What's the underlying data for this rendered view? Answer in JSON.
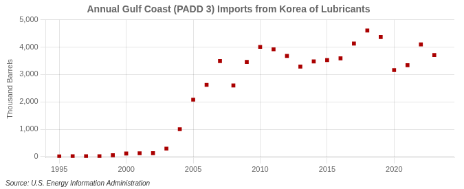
{
  "chart_data": {
    "type": "scatter",
    "title": "Annual Gulf Coast (PADD 3) Imports from Korea of Lubricants",
    "ylabel": "Thousand Barrels",
    "annotations": [
      "Source: U.S. Energy Information Administration"
    ],
    "x": [
      1995,
      1996,
      1997,
      1998,
      1999,
      2000,
      2001,
      2002,
      2003,
      2004,
      2005,
      2006,
      2007,
      2008,
      2009,
      2010,
      2011,
      2012,
      2013,
      2014,
      2015,
      2016,
      2017,
      2018,
      2019,
      2020,
      2021,
      2022,
      2023
    ],
    "values": [
      5,
      15,
      15,
      15,
      50,
      110,
      120,
      125,
      290,
      1000,
      2080,
      2620,
      3490,
      2600,
      3460,
      4010,
      3920,
      3680,
      3290,
      3480,
      3530,
      3590,
      4130,
      4610,
      4370,
      3160,
      3340,
      4100,
      3710
    ],
    "color": "#aa0000",
    "marker": "square",
    "xlim": [
      1994.0,
      2024.5
    ],
    "xticks": [
      1995,
      2000,
      2005,
      2010,
      2015,
      2020
    ],
    "ylim": [
      -50,
      5000
    ],
    "yticks": [
      0,
      {
        "value": 1000,
        "label": "1,000"
      },
      {
        "value": 2000,
        "label": "2,000"
      },
      {
        "value": 3000,
        "label": "3,000"
      },
      {
        "value": 4000,
        "label": "4,000"
      },
      {
        "value": 5000,
        "label": "5,000"
      }
    ],
    "grid": true
  }
}
